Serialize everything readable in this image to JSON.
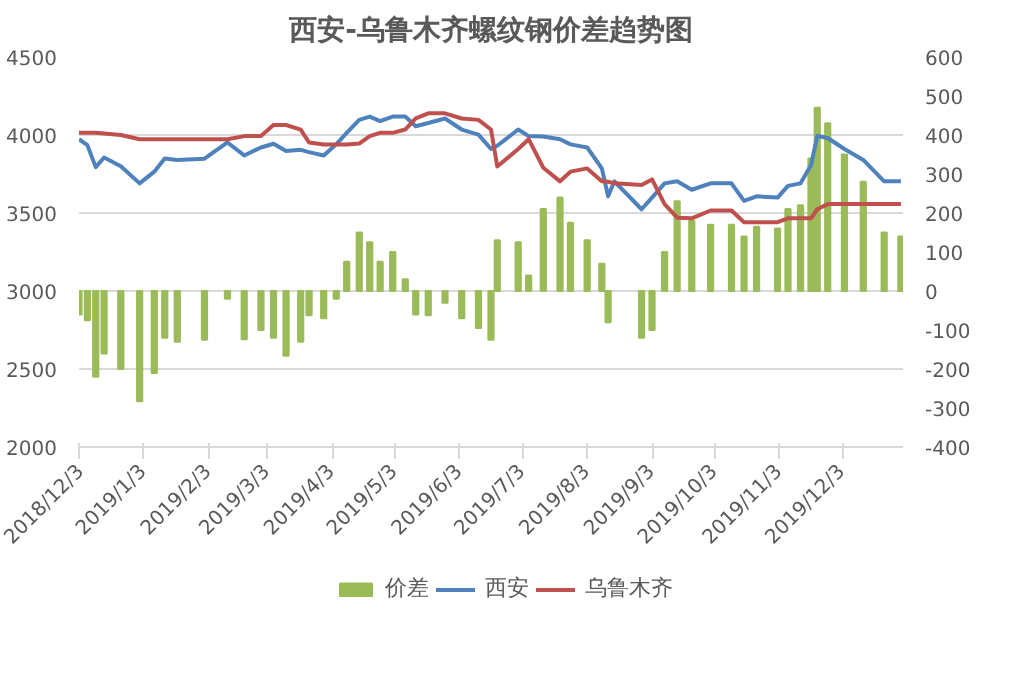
{
  "chart_data": {
    "type": "line",
    "title": "西安-乌鲁木齐螺纹钢价差趋势图",
    "x": [
      "2018-12-03",
      "2018-12-07",
      "2018-12-11",
      "2018-12-15",
      "2018-12-23",
      "2019-01-01",
      "2019-01-08",
      "2019-01-13",
      "2019-01-19",
      "2019-02-01",
      "2019-02-12",
      "2019-02-20",
      "2019-02-28",
      "2019-03-06",
      "2019-03-12",
      "2019-03-19",
      "2019-03-23",
      "2019-03-30",
      "2019-04-05",
      "2019-04-10",
      "2019-04-16",
      "2019-04-21",
      "2019-04-26",
      "2019-05-02",
      "2019-05-08",
      "2019-05-13",
      "2019-05-19",
      "2019-05-27",
      "2019-06-04",
      "2019-06-12",
      "2019-06-18",
      "2019-06-21",
      "2019-07-01",
      "2019-07-06",
      "2019-07-13",
      "2019-07-21",
      "2019-07-26",
      "2019-08-03",
      "2019-08-10",
      "2019-08-13",
      "2019-08-16",
      "2019-08-29",
      "2019-09-03",
      "2019-09-09",
      "2019-09-15",
      "2019-09-22",
      "2019-10-01",
      "2019-10-11",
      "2019-10-17",
      "2019-10-23",
      "2019-11-02",
      "2019-11-07",
      "2019-11-13",
      "2019-11-18",
      "2019-11-21",
      "2019-11-26",
      "2019-12-04",
      "2019-12-13",
      "2019-12-23",
      "2019-12-31"
    ],
    "series": [
      {
        "name": "价差",
        "type": "bar",
        "axis": "y2",
        "color": "#9bbb59",
        "values": [
          -60,
          -75,
          -220,
          -160,
          -200,
          -283,
          -210,
          -120,
          -130,
          -125,
          -20,
          -124,
          -100,
          -120,
          -166,
          -130,
          -62,
          -70,
          -20,
          75,
          150,
          125,
          75,
          100,
          30,
          -60,
          -62,
          -30,
          -70,
          -95,
          -125,
          130,
          125,
          40,
          210,
          240,
          175,
          130,
          70,
          -80,
          null,
          -120,
          -100,
          100,
          230,
          180,
          170,
          170,
          140,
          165,
          160,
          210,
          220,
          340,
          470,
          430,
          350,
          280,
          150,
          140
        ]
      },
      {
        "name": "西安",
        "color": "#4f81bd",
        "values": [
          3973,
          3935,
          3794,
          3856,
          3800,
          3690,
          3765,
          3850,
          3840,
          3848,
          3952,
          3869,
          3920,
          3944,
          3898,
          3905,
          3890,
          3869,
          3940,
          4014,
          4097,
          4118,
          4089,
          4118,
          4118,
          4056,
          4077,
          4106,
          4035,
          4002,
          3910,
          3931,
          4035,
          3993,
          3990,
          3973,
          3940,
          3920,
          3786,
          3607,
          3703,
          3524,
          3599,
          3690,
          3703,
          3649,
          3690,
          3690,
          3578,
          3607,
          3599,
          3674,
          3690,
          3806,
          3993,
          3981,
          3910,
          3840,
          3703,
          3703
        ]
      },
      {
        "name": "乌鲁木齐",
        "color": "#c0504d",
        "values": [
          4014,
          4014,
          4014,
          4010,
          4000,
          3973,
          3973,
          3973,
          3973,
          3973,
          3973,
          3993,
          3993,
          4064,
          4064,
          4035,
          3952,
          3939,
          3939,
          3939,
          3945,
          3993,
          4014,
          4014,
          4035,
          4106,
          4139,
          4139,
          4106,
          4097,
          4035,
          3798,
          3910,
          3973,
          3790,
          3703,
          3765,
          3786,
          3703,
          3700,
          3690,
          3680,
          3715,
          3557,
          3470,
          3466,
          3516,
          3516,
          3441,
          3441,
          3441,
          3466,
          3466,
          3466,
          3524,
          3557,
          3557,
          3557,
          3557,
          3557
        ]
      }
    ],
    "xlim": [
      "2018-12-03",
      "2020-01-01"
    ],
    "xticks": [
      {
        "value": "2018-12-03",
        "label": "2018/12/3"
      },
      {
        "value": "2019-01-03",
        "label": "2019/1/3"
      },
      {
        "value": "2019-02-03",
        "label": "2019/2/3"
      },
      {
        "value": "2019-03-03",
        "label": "2019/3/3"
      },
      {
        "value": "2019-04-03",
        "label": "2019/4/3"
      },
      {
        "value": "2019-05-03",
        "label": "2019/5/3"
      },
      {
        "value": "2019-06-03",
        "label": "2019/6/3"
      },
      {
        "value": "2019-07-03",
        "label": "2019/7/3"
      },
      {
        "value": "2019-08-03",
        "label": "2019/8/3"
      },
      {
        "value": "2019-09-03",
        "label": "2019/9/3"
      },
      {
        "value": "2019-10-03",
        "label": "2019/10/3"
      },
      {
        "value": "2019-11-03",
        "label": "2019/11/3"
      },
      {
        "value": "2019-12-03",
        "label": "2019/12/3"
      }
    ],
    "ylim": [
      2000,
      4500
    ],
    "yticks": [
      2000,
      2500,
      3000,
      3500,
      4000,
      4500
    ],
    "y2lim": [
      -400,
      600
    ],
    "y2ticks": [
      -400,
      -300,
      -200,
      -100,
      0,
      100,
      200,
      300,
      400,
      500,
      600
    ],
    "grid": "y",
    "legend": "bottom"
  }
}
